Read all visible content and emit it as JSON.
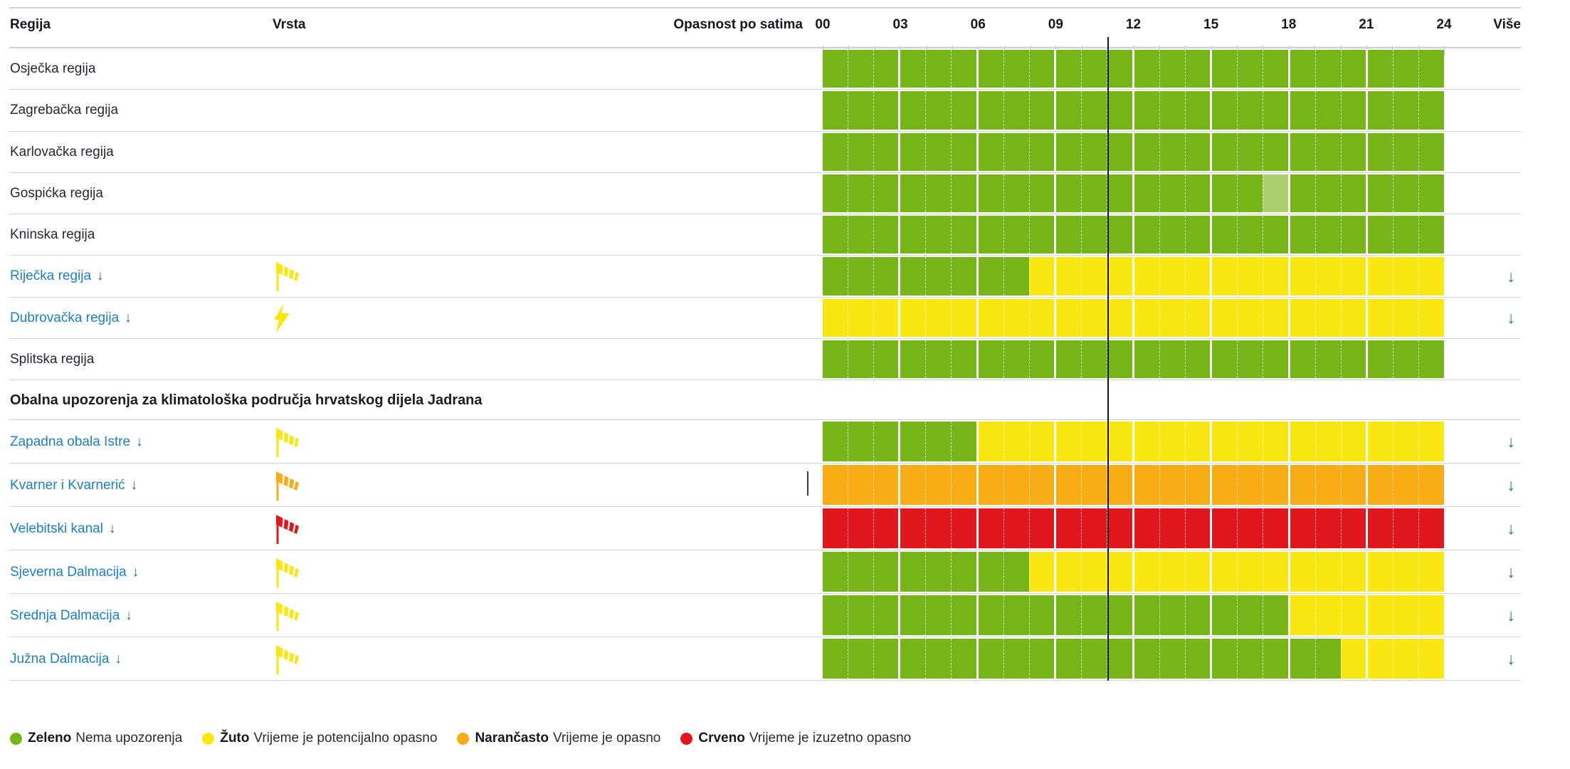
{
  "header": {
    "regija": "Regija",
    "vrsta": "Vrsta",
    "opasnost": "Opasnost po satima",
    "hours": [
      "00",
      "03",
      "06",
      "09",
      "12",
      "15",
      "18",
      "21",
      "24"
    ],
    "vise": "Više"
  },
  "time_indicator_hour": 11,
  "colors": {
    "green": "#75b517",
    "green_light": "#aacf6d",
    "yellow": "#f9e712",
    "orange": "#f9ac13",
    "red": "#e2171d",
    "link_blue": "#1b80c5",
    "arrow_blue": "#2470a3",
    "indicator_black": "#141414"
  },
  "sections": [
    {
      "title": null,
      "rows": [
        {
          "name": "Osječka regija",
          "link": false,
          "icon": null,
          "more": false,
          "segments": [
            [
              "g",
              0,
              24
            ]
          ]
        },
        {
          "name": "Zagrebačka regija",
          "link": false,
          "icon": null,
          "more": false,
          "segments": [
            [
              "g",
              0,
              24
            ]
          ]
        },
        {
          "name": "Karlovačka regija",
          "link": false,
          "icon": null,
          "more": false,
          "segments": [
            [
              "g",
              0,
              24
            ]
          ]
        },
        {
          "name": "Gospićka regija",
          "link": false,
          "icon": null,
          "more": false,
          "segments": [
            [
              "g",
              0,
              17
            ],
            [
              "lg",
              17,
              18
            ],
            [
              "g",
              18,
              24
            ]
          ]
        },
        {
          "name": "Kninska regija",
          "link": false,
          "icon": null,
          "more": false,
          "segments": [
            [
              "g",
              0,
              24
            ]
          ]
        },
        {
          "name": "Riječka regija",
          "link": true,
          "icon": {
            "type": "windsock",
            "color": "yellow"
          },
          "more": true,
          "segments": [
            [
              "g",
              0,
              8
            ],
            [
              "y",
              8,
              24
            ]
          ]
        },
        {
          "name": "Dubrovačka regija",
          "link": true,
          "icon": {
            "type": "lightning",
            "color": "yellow"
          },
          "more": true,
          "segments": [
            [
              "y",
              0,
              24
            ]
          ]
        },
        {
          "name": "Splitska regija",
          "link": false,
          "icon": null,
          "more": false,
          "segments": [
            [
              "g",
              0,
              24
            ]
          ]
        }
      ]
    },
    {
      "title": "Obalna upozorenja za klimatološka područja hrvatskog dijela Jadrana",
      "rows": [
        {
          "name": "Zapadna obala Istre",
          "link": true,
          "icon": {
            "type": "windsock",
            "color": "yellow"
          },
          "more": true,
          "segments": [
            [
              "g",
              0,
              6
            ],
            [
              "y",
              6,
              24
            ]
          ]
        },
        {
          "name": "Kvarner i Kvarnerić",
          "link": true,
          "icon": {
            "type": "windsock",
            "color": "orange"
          },
          "more": true,
          "segments": [
            [
              "o",
              0,
              24
            ]
          ]
        },
        {
          "name": "Velebitski kanal",
          "link": true,
          "icon": {
            "type": "windsock",
            "color": "red"
          },
          "more": true,
          "segments": [
            [
              "r",
              0,
              24
            ]
          ]
        },
        {
          "name": "Sjeverna Dalmacija",
          "link": true,
          "icon": {
            "type": "windsock",
            "color": "yellow"
          },
          "more": true,
          "segments": [
            [
              "g",
              0,
              8
            ],
            [
              "y",
              8,
              24
            ]
          ]
        },
        {
          "name": "Srednja Dalmacija",
          "link": true,
          "icon": {
            "type": "windsock",
            "color": "yellow"
          },
          "more": true,
          "segments": [
            [
              "g",
              0,
              18
            ],
            [
              "y",
              18,
              24
            ]
          ]
        },
        {
          "name": "Južna Dalmacija",
          "link": true,
          "icon": {
            "type": "windsock",
            "color": "yellow"
          },
          "more": true,
          "segments": [
            [
              "g",
              0,
              20
            ],
            [
              "y",
              20,
              24
            ]
          ]
        }
      ]
    }
  ],
  "legend": {
    "items": [
      {
        "label": "Zeleno",
        "text": "Nema upozorenja",
        "color": "green"
      },
      {
        "label": "Žuto",
        "text": "Vrijeme je potencijalno opasno",
        "color": "yellow"
      },
      {
        "label": "Narančasto",
        "text": "Vrijeme je opasno",
        "color": "orange"
      },
      {
        "label": "Crveno",
        "text": "Vrijeme je izuzetno opasno",
        "color": "red"
      }
    ]
  }
}
